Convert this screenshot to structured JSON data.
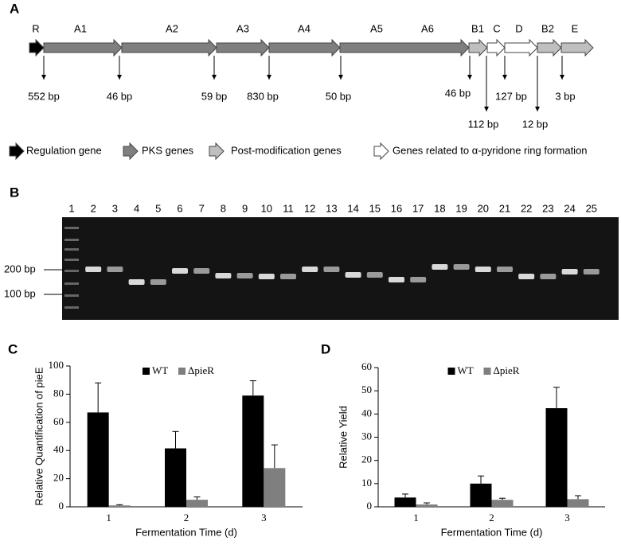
{
  "panel_a": {
    "label": "A",
    "genes": [
      "R",
      "A1",
      "A2",
      "A3",
      "A4",
      "A5",
      "A6",
      "B1",
      "C",
      "D",
      "B2",
      "E"
    ],
    "intergenic": [
      "552 bp",
      "46 bp",
      "59 bp",
      "830 bp",
      "50 bp",
      "46 bp",
      "112 bp",
      "127 bp",
      "12 bp",
      "3 bp"
    ],
    "legend": [
      "Regulation gene",
      "PKS genes",
      "Post-modification genes",
      "Genes related to α-pyridone ring formation"
    ]
  },
  "panel_b": {
    "label": "B",
    "lanes": [
      "1",
      "2",
      "3",
      "4",
      "5",
      "6",
      "7",
      "8",
      "9",
      "10",
      "11",
      "12",
      "13",
      "14",
      "15",
      "16",
      "17",
      "18",
      "19",
      "20",
      "21",
      "22",
      "23",
      "24",
      "25"
    ],
    "markers": [
      "200 bp",
      "100 bp"
    ]
  },
  "chart_data": [
    {
      "type": "bar",
      "panel_label": "C",
      "ylabel": "Relative Quantification of pieE",
      "xlabel": "Fermentation Time (d)",
      "categories": [
        "1",
        "2",
        "3"
      ],
      "series": [
        {
          "name": "WT",
          "color": "#000000",
          "values": [
            67,
            41.5,
            79
          ],
          "errors": [
            21,
            12,
            10.5
          ]
        },
        {
          "name": "ΔpieR",
          "color": "#7f7f7f",
          "values": [
            1,
            5,
            27.5
          ],
          "errors": [
            0.5,
            2,
            16.5
          ]
        }
      ],
      "ylim": [
        0,
        100
      ],
      "yticks": [
        0,
        20,
        40,
        60,
        80,
        100
      ],
      "legend": "upper center"
    },
    {
      "type": "bar",
      "panel_label": "D",
      "ylabel": "Relative Yield",
      "xlabel": "Fermentation Time (d)",
      "categories": [
        "1",
        "2",
        "3"
      ],
      "series": [
        {
          "name": "WT",
          "color": "#000000",
          "values": [
            4,
            10,
            42.5
          ],
          "errors": [
            1.5,
            3.3,
            9
          ]
        },
        {
          "name": "ΔpieR",
          "color": "#7f7f7f",
          "values": [
            1,
            3,
            3.3
          ],
          "errors": [
            0.7,
            0.7,
            1.5
          ]
        }
      ],
      "ylim": [
        0,
        60
      ],
      "yticks": [
        0,
        10,
        20,
        30,
        40,
        50,
        60
      ],
      "legend": "upper center"
    }
  ]
}
